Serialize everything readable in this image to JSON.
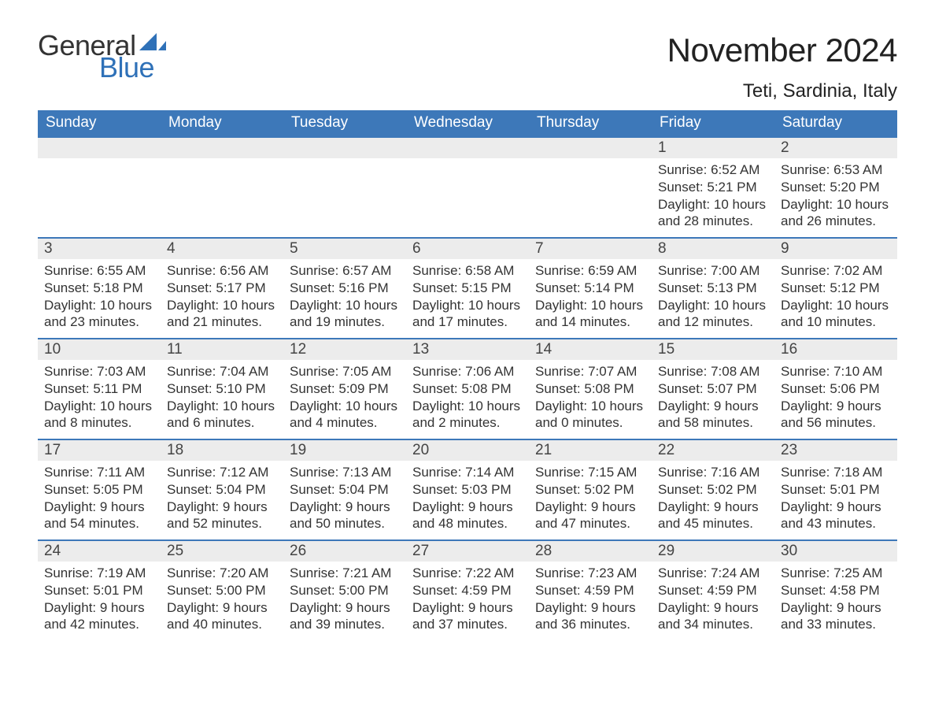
{
  "brand": {
    "word1": "General",
    "word2": "Blue",
    "word1_color": "#333333",
    "word2_color": "#2f71b8",
    "sail_color": "#2f71b8",
    "font_size_pt": 27
  },
  "title": {
    "month_year": "November 2024",
    "location": "Teti, Sardinia, Italy",
    "month_fontsize_pt": 31,
    "location_fontsize_pt": 18,
    "text_color": "#222222"
  },
  "calendar": {
    "header_bg": "#3d78b9",
    "header_fg": "#ffffff",
    "daynum_bg": "#ececec",
    "daynum_border_top": "#3d78b9",
    "body_bg": "#ffffff",
    "text_color": "#333333",
    "header_fontsize_pt": 14,
    "daynum_fontsize_pt": 14,
    "body_fontsize_pt": 13,
    "columns": [
      "Sunday",
      "Monday",
      "Tuesday",
      "Wednesday",
      "Thursday",
      "Friday",
      "Saturday"
    ],
    "weeks": [
      [
        null,
        null,
        null,
        null,
        null,
        {
          "n": "1",
          "sunrise": "6:52 AM",
          "sunset": "5:21 PM",
          "daylight": "10 hours and 28 minutes."
        },
        {
          "n": "2",
          "sunrise": "6:53 AM",
          "sunset": "5:20 PM",
          "daylight": "10 hours and 26 minutes."
        }
      ],
      [
        {
          "n": "3",
          "sunrise": "6:55 AM",
          "sunset": "5:18 PM",
          "daylight": "10 hours and 23 minutes."
        },
        {
          "n": "4",
          "sunrise": "6:56 AM",
          "sunset": "5:17 PM",
          "daylight": "10 hours and 21 minutes."
        },
        {
          "n": "5",
          "sunrise": "6:57 AM",
          "sunset": "5:16 PM",
          "daylight": "10 hours and 19 minutes."
        },
        {
          "n": "6",
          "sunrise": "6:58 AM",
          "sunset": "5:15 PM",
          "daylight": "10 hours and 17 minutes."
        },
        {
          "n": "7",
          "sunrise": "6:59 AM",
          "sunset": "5:14 PM",
          "daylight": "10 hours and 14 minutes."
        },
        {
          "n": "8",
          "sunrise": "7:00 AM",
          "sunset": "5:13 PM",
          "daylight": "10 hours and 12 minutes."
        },
        {
          "n": "9",
          "sunrise": "7:02 AM",
          "sunset": "5:12 PM",
          "daylight": "10 hours and 10 minutes."
        }
      ],
      [
        {
          "n": "10",
          "sunrise": "7:03 AM",
          "sunset": "5:11 PM",
          "daylight": "10 hours and 8 minutes."
        },
        {
          "n": "11",
          "sunrise": "7:04 AM",
          "sunset": "5:10 PM",
          "daylight": "10 hours and 6 minutes."
        },
        {
          "n": "12",
          "sunrise": "7:05 AM",
          "sunset": "5:09 PM",
          "daylight": "10 hours and 4 minutes."
        },
        {
          "n": "13",
          "sunrise": "7:06 AM",
          "sunset": "5:08 PM",
          "daylight": "10 hours and 2 minutes."
        },
        {
          "n": "14",
          "sunrise": "7:07 AM",
          "sunset": "5:08 PM",
          "daylight": "10 hours and 0 minutes."
        },
        {
          "n": "15",
          "sunrise": "7:08 AM",
          "sunset": "5:07 PM",
          "daylight": "9 hours and 58 minutes."
        },
        {
          "n": "16",
          "sunrise": "7:10 AM",
          "sunset": "5:06 PM",
          "daylight": "9 hours and 56 minutes."
        }
      ],
      [
        {
          "n": "17",
          "sunrise": "7:11 AM",
          "sunset": "5:05 PM",
          "daylight": "9 hours and 54 minutes."
        },
        {
          "n": "18",
          "sunrise": "7:12 AM",
          "sunset": "5:04 PM",
          "daylight": "9 hours and 52 minutes."
        },
        {
          "n": "19",
          "sunrise": "7:13 AM",
          "sunset": "5:04 PM",
          "daylight": "9 hours and 50 minutes."
        },
        {
          "n": "20",
          "sunrise": "7:14 AM",
          "sunset": "5:03 PM",
          "daylight": "9 hours and 48 minutes."
        },
        {
          "n": "21",
          "sunrise": "7:15 AM",
          "sunset": "5:02 PM",
          "daylight": "9 hours and 47 minutes."
        },
        {
          "n": "22",
          "sunrise": "7:16 AM",
          "sunset": "5:02 PM",
          "daylight": "9 hours and 45 minutes."
        },
        {
          "n": "23",
          "sunrise": "7:18 AM",
          "sunset": "5:01 PM",
          "daylight": "9 hours and 43 minutes."
        }
      ],
      [
        {
          "n": "24",
          "sunrise": "7:19 AM",
          "sunset": "5:01 PM",
          "daylight": "9 hours and 42 minutes."
        },
        {
          "n": "25",
          "sunrise": "7:20 AM",
          "sunset": "5:00 PM",
          "daylight": "9 hours and 40 minutes."
        },
        {
          "n": "26",
          "sunrise": "7:21 AM",
          "sunset": "5:00 PM",
          "daylight": "9 hours and 39 minutes."
        },
        {
          "n": "27",
          "sunrise": "7:22 AM",
          "sunset": "4:59 PM",
          "daylight": "9 hours and 37 minutes."
        },
        {
          "n": "28",
          "sunrise": "7:23 AM",
          "sunset": "4:59 PM",
          "daylight": "9 hours and 36 minutes."
        },
        {
          "n": "29",
          "sunrise": "7:24 AM",
          "sunset": "4:59 PM",
          "daylight": "9 hours and 34 minutes."
        },
        {
          "n": "30",
          "sunrise": "7:25 AM",
          "sunset": "4:58 PM",
          "daylight": "9 hours and 33 minutes."
        }
      ]
    ],
    "labels": {
      "sunrise": "Sunrise:",
      "sunset": "Sunset:",
      "daylight": "Daylight:"
    }
  }
}
